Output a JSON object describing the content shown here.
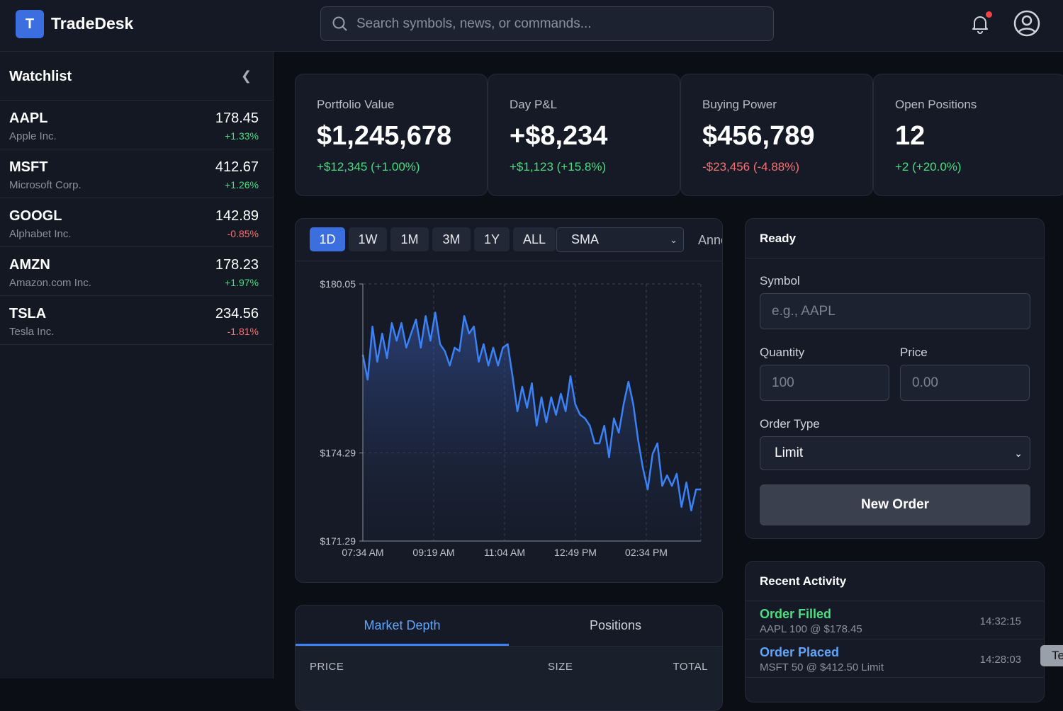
{
  "app": {
    "logo_letter": "T",
    "title": "TradeDesk"
  },
  "search": {
    "placeholder": "Search symbols, news, or commands...",
    "value": ""
  },
  "sidebar": {
    "title": "Watchlist",
    "items": [
      {
        "symbol": "AAPL",
        "name": "Apple Inc.",
        "price": "178.45",
        "change": "+1.33%",
        "dir": "pos"
      },
      {
        "symbol": "MSFT",
        "name": "Microsoft Corp.",
        "price": "412.67",
        "change": "+1.26%",
        "dir": "pos"
      },
      {
        "symbol": "GOOGL",
        "name": "Alphabet Inc.",
        "price": "142.89",
        "change": "-0.85%",
        "dir": "neg"
      },
      {
        "symbol": "AMZN",
        "name": "Amazon.com Inc.",
        "price": "178.23",
        "change": "+1.97%",
        "dir": "pos"
      },
      {
        "symbol": "TSLA",
        "name": "Tesla Inc.",
        "price": "234.56",
        "change": "-1.81%",
        "dir": "neg"
      }
    ]
  },
  "stats": [
    {
      "label": "Portfolio Value",
      "value": "$1,245,678",
      "change": "+$12,345 (+1.00%)",
      "dir": "pos"
    },
    {
      "label": "Day P&L",
      "value": "+$8,234",
      "change": "+$1,123 (+15.8%)",
      "dir": "pos"
    },
    {
      "label": "Buying Power",
      "value": "$456,789",
      "change": "-$23,456 (-4.88%)",
      "dir": "neg"
    },
    {
      "label": "Open Positions",
      "value": "12",
      "change": "+2 (+20.0%)",
      "dir": "pos"
    }
  ],
  "chart": {
    "timeframes": [
      "1D",
      "1W",
      "1M",
      "3M",
      "1Y",
      "ALL"
    ],
    "active_timeframe": "1D",
    "indicator": "SMA",
    "annotations_label": "Anno"
  },
  "chart_data": {
    "type": "area",
    "y_ticks": [
      "$180.05",
      "$174.29",
      "$171.29"
    ],
    "ylim": [
      171.29,
      180.05
    ],
    "x_ticks": [
      "07:34 AM",
      "09:19 AM",
      "11:04 AM",
      "12:49 PM",
      "02:34 PM"
    ],
    "grid": true,
    "line_color": "#3b82f6",
    "values": [
      177.64,
      176.79,
      178.6,
      177.4,
      178.36,
      177.52,
      178.72,
      178.12,
      178.72,
      177.88,
      178.36,
      178.84,
      177.88,
      178.96,
      178.12,
      179.08,
      178.0,
      177.76,
      177.27,
      177.88,
      177.76,
      178.96,
      178.36,
      178.6,
      177.4,
      178.0,
      177.27,
      177.88,
      177.27,
      177.88,
      178.0,
      176.91,
      175.71,
      176.55,
      175.83,
      176.67,
      175.22,
      176.19,
      175.34,
      176.19,
      175.59,
      176.31,
      175.71,
      176.91,
      175.95,
      175.59,
      175.47,
      175.22,
      174.62,
      174.62,
      175.22,
      174.14,
      175.47,
      174.98,
      175.95,
      176.72,
      175.95,
      174.74,
      173.78,
      173.05,
      174.26,
      174.62,
      173.17,
      173.53,
      173.17,
      173.58,
      172.45,
      173.29,
      172.33,
      173.05,
      173.05
    ]
  },
  "order": {
    "status": "Ready",
    "symbol_label": "Symbol",
    "symbol_placeholder": "e.g., AAPL",
    "quantity_label": "Quantity",
    "quantity_placeholder": "100",
    "price_label": "Price",
    "price_placeholder": "0.00",
    "type_label": "Order Type",
    "type_value": "Limit",
    "submit": "New Order"
  },
  "activity": {
    "title": "Recent Activity",
    "items": [
      {
        "title": "Order Filled",
        "detail": "AAPL 100 @ $178.45",
        "time": "14:32:15",
        "color": "#4ade80"
      },
      {
        "title": "Order Placed",
        "detail": "MSFT 50 @ $412.50 Limit",
        "time": "14:28:03",
        "color": "#60a5fa"
      }
    ]
  },
  "bottom": {
    "tabs": [
      "Market Depth",
      "Positions"
    ],
    "columns": [
      "PRICE",
      "SIZE",
      "TOTAL"
    ]
  },
  "toast": {
    "text": "Te"
  }
}
